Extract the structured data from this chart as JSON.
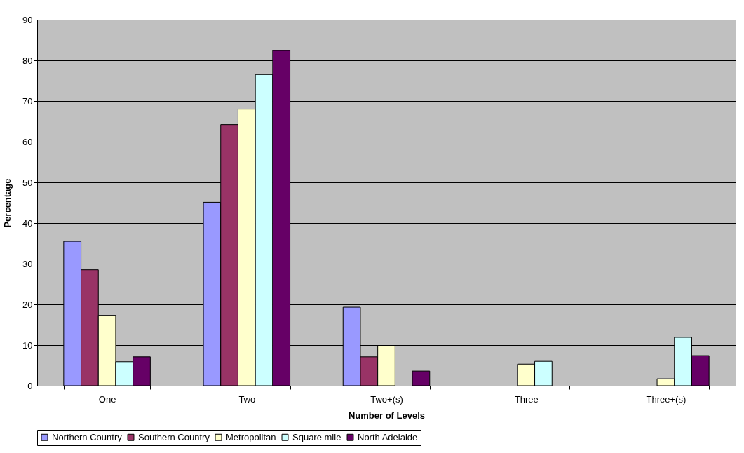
{
  "chart_data": {
    "type": "bar",
    "xlabel": "Number of Levels",
    "ylabel": "Percentage",
    "categories": [
      "One",
      "Two",
      "Two+(s)",
      "Three",
      "Three+(s)"
    ],
    "series": [
      {
        "name": "Northern Country",
        "color": "#9999ff",
        "values": [
          35.5,
          45.1,
          19.3,
          null,
          null
        ]
      },
      {
        "name": "Southern Country",
        "color": "#993366",
        "values": [
          28.5,
          64.2,
          7.1,
          null,
          null
        ]
      },
      {
        "name": "Metropolitan",
        "color": "#ffffcc",
        "values": [
          17.3,
          68.0,
          9.8,
          5.3,
          1.7
        ]
      },
      {
        "name": "Square mile",
        "color": "#ccffff",
        "values": [
          5.9,
          76.5,
          null,
          6.0,
          11.9
        ]
      },
      {
        "name": "North Adelaide",
        "color": "#660066",
        "values": [
          7.1,
          82.4,
          3.6,
          null,
          7.4
        ]
      }
    ],
    "ylim": [
      0,
      90
    ],
    "yticks": [
      0,
      10,
      20,
      30,
      40,
      50,
      60,
      70,
      80,
      90
    ],
    "grid": "y",
    "legend": "bottom"
  }
}
